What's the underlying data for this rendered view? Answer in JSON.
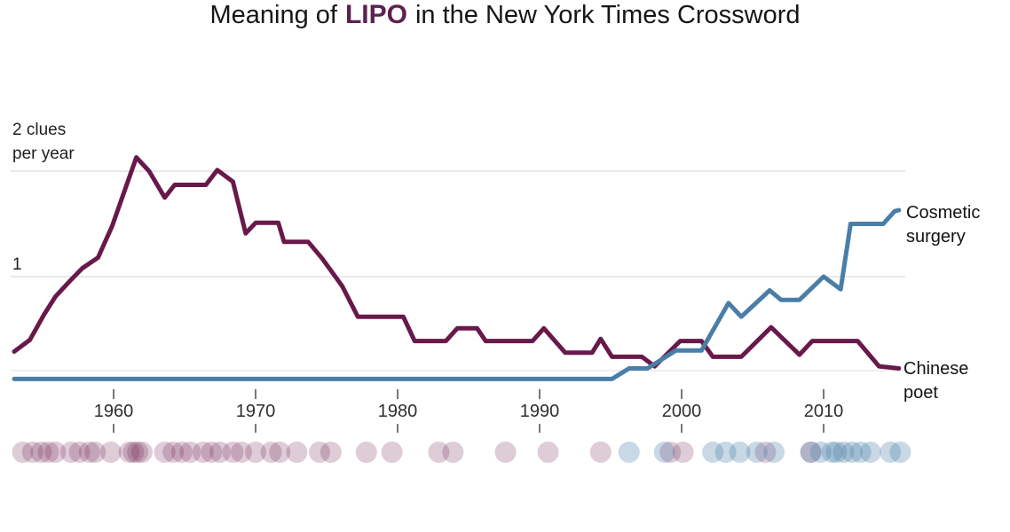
{
  "title": {
    "prefix": "Meaning of",
    "keyword": "LIPO",
    "suffix": "in the New York Times Crossword"
  },
  "colors": {
    "maroon": "#68194a",
    "blue": "#4a7ea7",
    "lipo_keyword": "#5d2151",
    "gridline": "#e2e2e2",
    "baseline": "#eaeaea",
    "tick": "#4a4a4a",
    "title_text": "#161616",
    "axis_text": "#2e2e2e"
  },
  "y_axis": {
    "top_line1": "2 clues",
    "top_line2": "per year",
    "mid_label": "1"
  },
  "series_labels": {
    "cosmetic": {
      "line1": "Cosmetic",
      "line2": "surgery"
    },
    "chinese": {
      "line1": "Chinese",
      "line2": "poet"
    }
  },
  "chart_data": {
    "type": "line",
    "title": "Meaning of LIPO in the New York Times Crossword",
    "x_domain": [
      1953,
      2015.4
    ],
    "y_domain": [
      0,
      2.2
    ],
    "x_ticks": [
      1960,
      1970,
      1980,
      1990,
      2000,
      2010
    ],
    "y_gridlines": [
      {
        "value": 2,
        "label": "2 clues per year"
      },
      {
        "value": 1,
        "label": "1"
      }
    ],
    "series": [
      {
        "name": "Chinese poet",
        "color_key": "maroon",
        "points": [
          [
            1953.0,
            0.29
          ],
          [
            1954.1,
            0.4
          ],
          [
            1955.1,
            0.64
          ],
          [
            1955.9,
            0.81
          ],
          [
            1957.0,
            0.97
          ],
          [
            1957.8,
            1.08
          ],
          [
            1958.9,
            1.18
          ],
          [
            1959.9,
            1.48
          ],
          [
            1961.6,
            2.13
          ],
          [
            1962.5,
            2.0
          ],
          [
            1963.6,
            1.75
          ],
          [
            1964.3,
            1.87
          ],
          [
            1966.5,
            1.87
          ],
          [
            1967.3,
            2.01
          ],
          [
            1968.4,
            1.9
          ],
          [
            1969.3,
            1.41
          ],
          [
            1970.0,
            1.51
          ],
          [
            1971.6,
            1.51
          ],
          [
            1972.0,
            1.33
          ],
          [
            1973.7,
            1.33
          ],
          [
            1974.7,
            1.17
          ],
          [
            1976.1,
            0.91
          ],
          [
            1977.2,
            0.62
          ],
          [
            1980.4,
            0.62
          ],
          [
            1981.2,
            0.39
          ],
          [
            1983.4,
            0.39
          ],
          [
            1984.2,
            0.51
          ],
          [
            1985.6,
            0.51
          ],
          [
            1986.2,
            0.39
          ],
          [
            1989.5,
            0.39
          ],
          [
            1990.3,
            0.51
          ],
          [
            1991.8,
            0.28
          ],
          [
            1993.7,
            0.28
          ],
          [
            1994.3,
            0.41
          ],
          [
            1995.1,
            0.24
          ],
          [
            1997.2,
            0.24
          ],
          [
            1998.1,
            0.15
          ],
          [
            1999.9,
            0.39
          ],
          [
            2001.4,
            0.39
          ],
          [
            2002.2,
            0.24
          ],
          [
            2004.2,
            0.24
          ],
          [
            2006.3,
            0.52
          ],
          [
            2008.3,
            0.26
          ],
          [
            2009.2,
            0.39
          ],
          [
            2012.4,
            0.39
          ],
          [
            2013.9,
            0.15
          ],
          [
            2015.3,
            0.13
          ]
        ]
      },
      {
        "name": "Cosmetic surgery",
        "color_key": "blue",
        "points": [
          [
            1953.0,
            0.03
          ],
          [
            1995.1,
            0.03
          ],
          [
            1996.3,
            0.13
          ],
          [
            1997.6,
            0.13
          ],
          [
            1999.6,
            0.3
          ],
          [
            2001.4,
            0.3
          ],
          [
            2003.3,
            0.75
          ],
          [
            2004.2,
            0.62
          ],
          [
            2006.2,
            0.87
          ],
          [
            2007.0,
            0.78
          ],
          [
            2008.3,
            0.78
          ],
          [
            2010.0,
            1.0
          ],
          [
            2011.2,
            0.88
          ],
          [
            2011.9,
            1.5
          ],
          [
            2014.2,
            1.5
          ],
          [
            2015.0,
            1.62
          ],
          [
            2015.3,
            1.63
          ]
        ]
      }
    ],
    "clue_dots": {
      "maroon_years": [
        1953.6,
        1954.3,
        1954.9,
        1955.4,
        1955.9,
        1957.0,
        1957.6,
        1958.3,
        1958.7,
        1959.8,
        1961.1,
        1961.4,
        1961.7,
        1962.0,
        1963.6,
        1964.2,
        1964.8,
        1965.4,
        1966.3,
        1966.9,
        1967.5,
        1968.4,
        1969.0,
        1970.0,
        1971.1,
        1971.7,
        1972.9,
        1974.5,
        1975.3,
        1977.8,
        1979.6,
        1982.9,
        1983.9,
        1987.6,
        1990.6,
        1994.3,
        1999.2,
        2000.1,
        2005.9,
        2009.1
      ],
      "blue_years": [
        1996.3,
        1998.8,
        2002.2,
        2003.1,
        2004.1,
        2005.3,
        2006.5,
        2009.1,
        2009.8,
        2010.6,
        2010.9,
        2011.4,
        2012.0,
        2012.6,
        2013.3,
        2014.7,
        2015.4
      ]
    }
  }
}
